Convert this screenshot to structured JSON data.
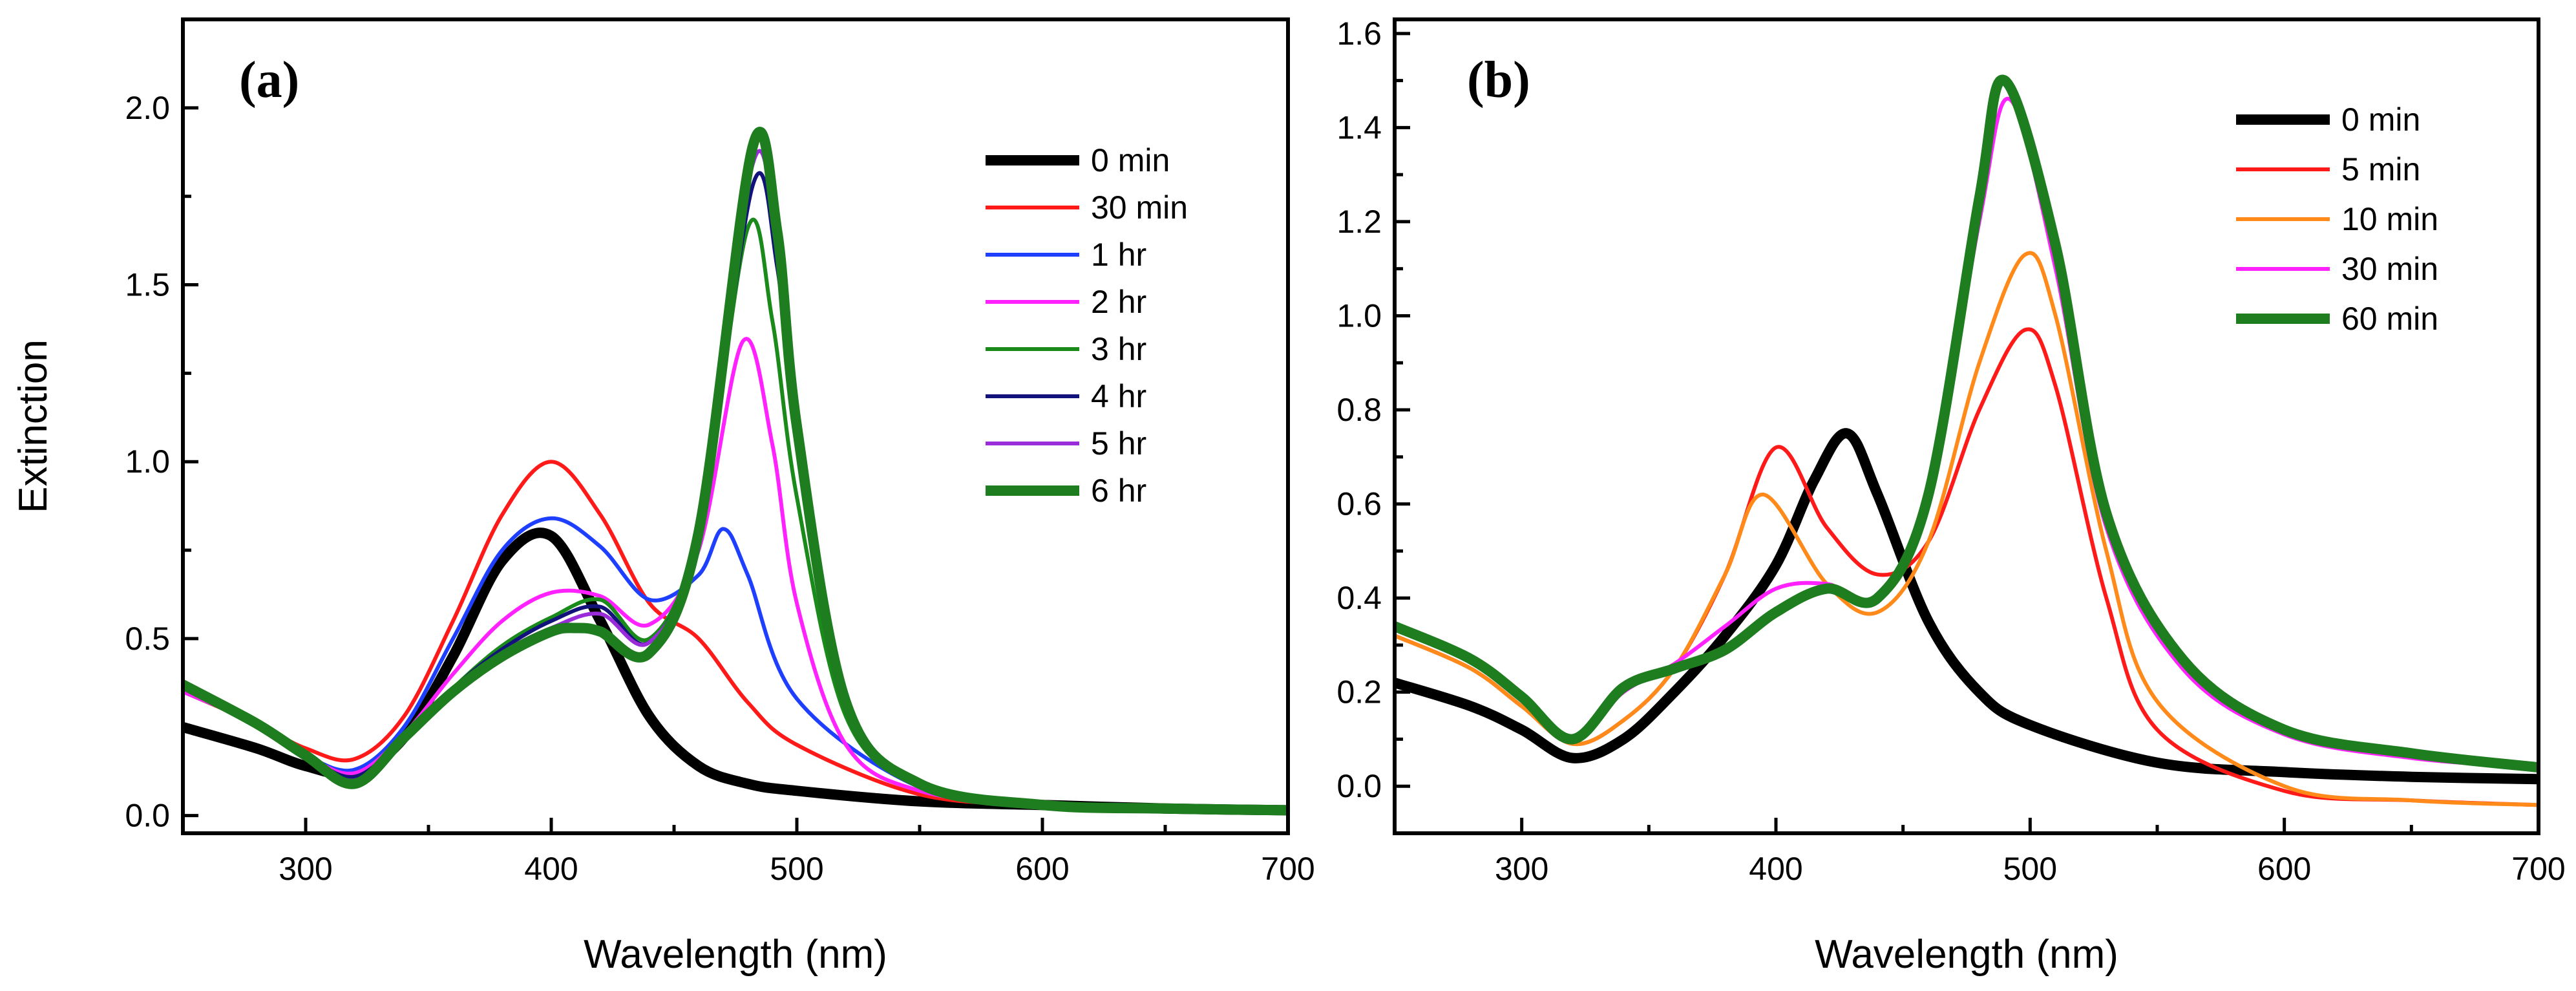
{
  "colors": {
    "0 min": "#000000",
    "30 min": "#ff1a1a",
    "1 hr": "#1f3fff",
    "2 hr": "#ff22ff",
    "3 hr": "#1a8a1a",
    "4 hr": "#12127a",
    "5 hr": "#9a2bd8",
    "6 hr": "#1e7d1e",
    "5 min": "#ff1a1a",
    "10 min": "#ff8a1a",
    "30 min b": "#ff22ff",
    "60 min": "#1e7d1e"
  },
  "chart_data": [
    {
      "type": "line",
      "panel_label": "(a)",
      "xlabel": "Wavelength (nm)",
      "ylabel": "Extinction",
      "xlim": [
        250,
        700
      ],
      "ylim": [
        -0.05,
        2.25
      ],
      "xticks": [
        300,
        400,
        500,
        600,
        700
      ],
      "yticks": [
        0.0,
        0.5,
        1.0,
        1.5,
        2.0
      ],
      "xtick_labels": [
        "300",
        "400",
        "500",
        "600",
        "700"
      ],
      "ytick_labels": [
        "0.0",
        "0.5",
        "1.0",
        "1.5",
        "2.0"
      ],
      "legend_position": "top-right",
      "series": [
        {
          "name": "0 min",
          "color": "#000000",
          "thick": true,
          "x": [
            250,
            280,
            300,
            320,
            340,
            360,
            380,
            400,
            420,
            440,
            460,
            480,
            500,
            550,
            600,
            650,
            700
          ],
          "y": [
            0.25,
            0.19,
            0.14,
            0.12,
            0.22,
            0.45,
            0.72,
            0.79,
            0.55,
            0.28,
            0.14,
            0.09,
            0.07,
            0.04,
            0.03,
            0.02,
            0.015
          ]
        },
        {
          "name": "30 min",
          "color": "#ff1a1a",
          "thick": false,
          "x": [
            250,
            280,
            300,
            320,
            340,
            360,
            380,
            400,
            420,
            440,
            460,
            480,
            500,
            550,
            600,
            650,
            700
          ],
          "y": [
            0.35,
            0.26,
            0.19,
            0.16,
            0.28,
            0.55,
            0.85,
            1.0,
            0.85,
            0.6,
            0.5,
            0.32,
            0.2,
            0.06,
            0.03,
            0.02,
            0.015
          ]
        },
        {
          "name": "1 hr",
          "color": "#1f3fff",
          "thick": false,
          "x": [
            250,
            280,
            300,
            320,
            340,
            360,
            380,
            400,
            420,
            440,
            460,
            470,
            480,
            500,
            550,
            600,
            650,
            700
          ],
          "y": [
            0.35,
            0.26,
            0.17,
            0.13,
            0.25,
            0.5,
            0.75,
            0.84,
            0.76,
            0.61,
            0.68,
            0.81,
            0.68,
            0.33,
            0.08,
            0.03,
            0.02,
            0.015
          ]
        },
        {
          "name": "2 hr",
          "color": "#ff22ff",
          "thick": false,
          "x": [
            250,
            280,
            300,
            320,
            340,
            360,
            380,
            400,
            420,
            440,
            460,
            478,
            490,
            500,
            520,
            550,
            600,
            650,
            700
          ],
          "y": [
            0.35,
            0.26,
            0.17,
            0.12,
            0.23,
            0.4,
            0.55,
            0.63,
            0.62,
            0.54,
            0.75,
            1.34,
            1.05,
            0.6,
            0.2,
            0.07,
            0.03,
            0.02,
            0.015
          ]
        },
        {
          "name": "3 hr",
          "color": "#1a8a1a",
          "thick": false,
          "x": [
            250,
            280,
            300,
            320,
            340,
            360,
            380,
            400,
            420,
            440,
            460,
            480,
            490,
            500,
            520,
            550,
            600,
            650,
            700
          ],
          "y": [
            0.37,
            0.26,
            0.17,
            0.11,
            0.22,
            0.36,
            0.48,
            0.56,
            0.61,
            0.5,
            0.8,
            1.66,
            1.4,
            0.9,
            0.28,
            0.09,
            0.03,
            0.02,
            0.015
          ]
        },
        {
          "name": "4 hr",
          "color": "#12127a",
          "thick": false,
          "x": [
            250,
            280,
            300,
            320,
            340,
            360,
            380,
            400,
            420,
            440,
            460,
            482,
            492,
            500,
            520,
            550,
            600,
            650,
            700
          ],
          "y": [
            0.37,
            0.26,
            0.17,
            0.11,
            0.22,
            0.36,
            0.47,
            0.55,
            0.59,
            0.49,
            0.8,
            1.78,
            1.55,
            1.05,
            0.3,
            0.09,
            0.03,
            0.02,
            0.015
          ]
        },
        {
          "name": "5 hr",
          "color": "#9a2bd8",
          "thick": false,
          "x": [
            250,
            280,
            300,
            320,
            340,
            360,
            380,
            400,
            420,
            440,
            460,
            482,
            492,
            500,
            520,
            550,
            600,
            650,
            700
          ],
          "y": [
            0.37,
            0.26,
            0.17,
            0.1,
            0.22,
            0.35,
            0.46,
            0.53,
            0.57,
            0.49,
            0.8,
            1.84,
            1.6,
            1.08,
            0.31,
            0.09,
            0.03,
            0.02,
            0.015
          ]
        },
        {
          "name": "6 hr",
          "color": "#1e7d1e",
          "thick": true,
          "x": [
            250,
            280,
            300,
            320,
            340,
            360,
            380,
            400,
            410,
            420,
            440,
            460,
            482,
            492,
            500,
            520,
            550,
            600,
            650,
            700
          ],
          "y": [
            0.37,
            0.26,
            0.17,
            0.09,
            0.22,
            0.35,
            0.45,
            0.52,
            0.53,
            0.52,
            0.46,
            0.8,
            1.89,
            1.65,
            1.1,
            0.32,
            0.09,
            0.03,
            0.02,
            0.015
          ]
        }
      ]
    },
    {
      "type": "line",
      "panel_label": "(b)",
      "xlabel": "Wavelength (nm)",
      "ylabel": "",
      "xlim": [
        250,
        700
      ],
      "ylim": [
        -0.1,
        1.63
      ],
      "xticks": [
        300,
        400,
        500,
        600,
        700
      ],
      "yticks": [
        0.0,
        0.2,
        0.4,
        0.6,
        0.8,
        1.0,
        1.2,
        1.4,
        1.6
      ],
      "xtick_labels": [
        "300",
        "400",
        "500",
        "600",
        "700"
      ],
      "ytick_labels": [
        "0.0",
        "0.2",
        "0.4",
        "0.6",
        "0.8",
        "1.0",
        "1.2",
        "1.4",
        "1.6"
      ],
      "legend_position": "top-right",
      "series": [
        {
          "name": "0 min",
          "color": "#000000",
          "thick": true,
          "x": [
            250,
            280,
            300,
            320,
            340,
            360,
            380,
            400,
            415,
            428,
            440,
            460,
            480,
            500,
            550,
            600,
            650,
            700
          ],
          "y": [
            0.22,
            0.17,
            0.12,
            0.06,
            0.1,
            0.2,
            0.32,
            0.47,
            0.65,
            0.75,
            0.62,
            0.35,
            0.2,
            0.13,
            0.05,
            0.03,
            0.02,
            0.015
          ]
        },
        {
          "name": "5 min",
          "color": "#ff1a1a",
          "thick": false,
          "x": [
            250,
            280,
            300,
            320,
            340,
            360,
            380,
            400,
            420,
            440,
            460,
            480,
            498,
            510,
            530,
            550,
            600,
            650,
            700
          ],
          "y": [
            0.32,
            0.25,
            0.17,
            0.09,
            0.14,
            0.25,
            0.45,
            0.72,
            0.55,
            0.45,
            0.52,
            0.8,
            0.97,
            0.85,
            0.4,
            0.12,
            -0.01,
            -0.03,
            -0.04
          ]
        },
        {
          "name": "10 min",
          "color": "#ff8a1a",
          "thick": false,
          "x": [
            250,
            280,
            300,
            320,
            340,
            360,
            380,
            395,
            420,
            440,
            460,
            480,
            498,
            510,
            530,
            550,
            600,
            650,
            700
          ],
          "y": [
            0.32,
            0.25,
            0.17,
            0.09,
            0.14,
            0.25,
            0.45,
            0.62,
            0.43,
            0.37,
            0.52,
            0.9,
            1.13,
            1.0,
            0.5,
            0.18,
            0.0,
            -0.03,
            -0.04
          ]
        },
        {
          "name": "30 min",
          "color": "#ff22ff",
          "thick": false,
          "x": [
            250,
            280,
            300,
            320,
            340,
            360,
            380,
            400,
            420,
            440,
            460,
            480,
            492,
            510,
            530,
            560,
            600,
            650,
            700
          ],
          "y": [
            0.34,
            0.27,
            0.19,
            0.1,
            0.2,
            0.26,
            0.34,
            0.42,
            0.43,
            0.4,
            0.6,
            1.2,
            1.46,
            1.1,
            0.55,
            0.25,
            0.11,
            0.06,
            0.04
          ]
        },
        {
          "name": "60 min",
          "color": "#1e7d1e",
          "thick": true,
          "x": [
            250,
            280,
            300,
            320,
            340,
            360,
            380,
            400,
            420,
            440,
            460,
            480,
            490,
            510,
            530,
            560,
            600,
            650,
            700
          ],
          "y": [
            0.34,
            0.27,
            0.19,
            0.1,
            0.21,
            0.25,
            0.29,
            0.37,
            0.42,
            0.4,
            0.62,
            1.25,
            1.5,
            1.15,
            0.58,
            0.27,
            0.12,
            0.07,
            0.04
          ]
        }
      ]
    }
  ]
}
